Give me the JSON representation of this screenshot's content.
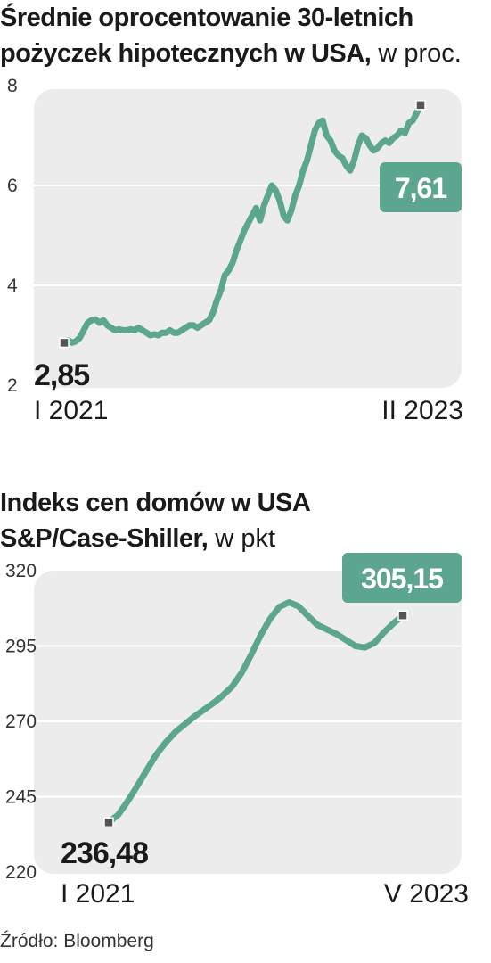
{
  "colors": {
    "line": "#5ca58e",
    "panel": "#ececec",
    "grid": "#ffffff",
    "badge": "#5ca58e",
    "marker": "#555555"
  },
  "chart1_title": {
    "main_line1": "Średnie oprocentowanie 30-letnich",
    "main_line2": "pożyczek hipotecznych w USA,",
    "unit": " w proc."
  },
  "chart2_title": {
    "main_line1": "Indeks cen domów w USA",
    "main_line2": "S&P/Case-Shiller,",
    "unit": " w pkt"
  },
  "source": "Źródło: Bloomberg",
  "chart_data": [
    {
      "type": "line",
      "title": "Średnie oprocentowanie 30-letnich pożyczek hipotecznych w USA, w proc.",
      "ylim": [
        2,
        8
      ],
      "yticks": [
        "8",
        "6",
        "4",
        "2"
      ],
      "ytick_values": [
        8,
        6,
        4,
        2
      ],
      "x_start_label": "I 2021",
      "x_end_label": "II 2023",
      "start_value_label": "2,85",
      "end_value_label": "7,61",
      "grid": true,
      "series": [
        {
          "values": [
            2.85,
            2.9,
            2.85,
            2.88,
            2.95,
            3.1,
            3.25,
            3.3,
            3.32,
            3.25,
            3.3,
            3.2,
            3.15,
            3.1,
            3.12,
            3.1,
            3.1,
            3.12,
            3.1,
            3.15,
            3.1,
            3.05,
            3.0,
            3.02,
            3.0,
            3.05,
            3.05,
            3.1,
            3.05,
            3.05,
            3.1,
            3.15,
            3.2,
            3.2,
            3.15,
            3.2,
            3.25,
            3.3,
            3.45,
            3.7,
            3.9,
            4.2,
            4.3,
            4.45,
            4.7,
            4.9,
            5.1,
            5.25,
            5.4,
            5.55,
            5.3,
            5.6,
            5.8,
            6.0,
            5.9,
            5.7,
            5.4,
            5.3,
            5.5,
            5.8,
            6.0,
            6.3,
            6.5,
            6.8,
            7.1,
            7.25,
            7.3,
            7.0,
            6.9,
            6.7,
            6.6,
            6.55,
            6.4,
            6.3,
            6.5,
            6.8,
            7.0,
            6.95,
            6.8,
            6.7,
            6.75,
            6.85,
            6.9,
            6.85,
            6.95,
            7.0,
            7.1,
            7.05,
            7.25,
            7.3,
            7.45,
            7.61
          ]
        }
      ]
    },
    {
      "type": "line",
      "title": "Indeks cen domów w USA S&P/Case-Shiller, w pkt",
      "ylim": [
        220,
        320
      ],
      "yticks": [
        "320",
        "295",
        "270",
        "245",
        "220"
      ],
      "ytick_values": [
        320,
        295,
        270,
        245,
        220
      ],
      "x_start_label": "I 2021",
      "x_end_label": "V 2023",
      "start_value_label": "236,48",
      "end_value_label": "305,15",
      "grid": true,
      "series": [
        {
          "values": [
            236.48,
            239.0,
            243.5,
            248.5,
            253.8,
            258.9,
            263.0,
            266.4,
            269.0,
            271.5,
            273.8,
            276.0,
            278.5,
            281.5,
            286.0,
            292.0,
            298.5,
            304.0,
            308.0,
            309.5,
            308.2,
            305.0,
            302.0,
            300.5,
            299.0,
            297.0,
            295.0,
            294.5,
            296.0,
            299.5,
            302.5,
            305.15
          ]
        }
      ]
    }
  ]
}
